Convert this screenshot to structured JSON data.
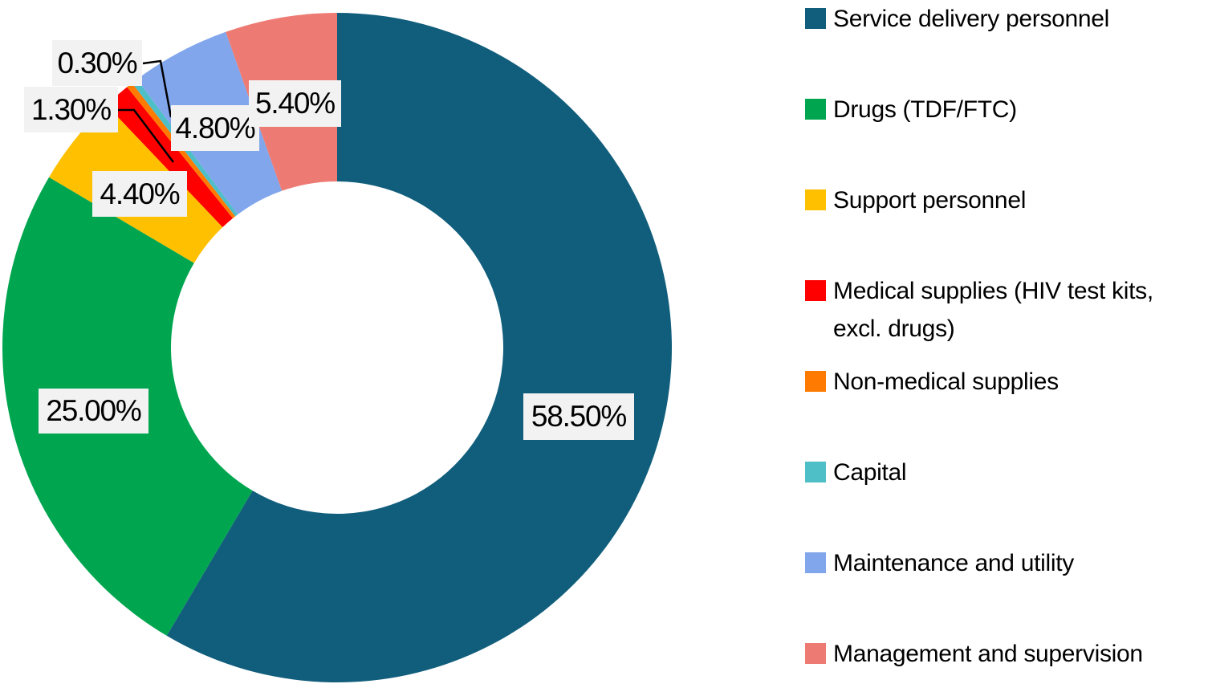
{
  "figure": {
    "background_color": "#FFFFFF",
    "text_color": "#000000"
  },
  "chart_data": {
    "type": "pie",
    "subtype": "donut",
    "title": "",
    "direction": "clockwise",
    "start_angle_deg": 0,
    "donut_hole_ratio": 0.5,
    "legend_position": "right",
    "categories": [
      "Service delivery personnel",
      "Drugs (TDF/FTC)",
      "Support personnel",
      "Medical supplies (HIV test kits, excl. drugs)",
      "Non-medical supplies",
      "Capital",
      "Maintenance and utility",
      "Management and supervision"
    ],
    "values": [
      58.5,
      25.0,
      4.4,
      1.3,
      0.3,
      0.3,
      4.8,
      5.4
    ],
    "colors": [
      "#115E7C",
      "#00A64F",
      "#FFC000",
      "#FF0000",
      "#FF7A00",
      "#4EBEC7",
      "#82A6EC",
      "#EE7B73"
    ],
    "slice_labels": [
      {
        "slice": "Service delivery personnel",
        "text": "58.50%"
      },
      {
        "slice": "Drugs (TDF/FTC)",
        "text": "25.00%"
      },
      {
        "slice": "Support personnel",
        "text": "4.40%"
      },
      {
        "slice": "Medical supplies (HIV test kits, excl. drugs)",
        "text": "1.30%"
      },
      {
        "slice": "Capital",
        "text": "0.30%"
      },
      {
        "slice": "Maintenance and utility",
        "text": "4.80%"
      },
      {
        "slice": "Management and supervision",
        "text": "5.40%"
      }
    ],
    "label_box_color": "#F2F2F2",
    "label_text_color": "#000000",
    "leader_line_color": "#000000"
  },
  "legend": {
    "items": [
      {
        "label": "Service delivery personnel"
      },
      {
        "label": "Drugs (TDF/FTC)"
      },
      {
        "label": "Support personnel"
      },
      {
        "label": "Medical supplies (HIV test kits,\nexcl. drugs)"
      },
      {
        "label": "Non-medical supplies"
      },
      {
        "label": "Capital"
      },
      {
        "label": "Maintenance and utility"
      },
      {
        "label": "Management and supervision"
      }
    ]
  }
}
